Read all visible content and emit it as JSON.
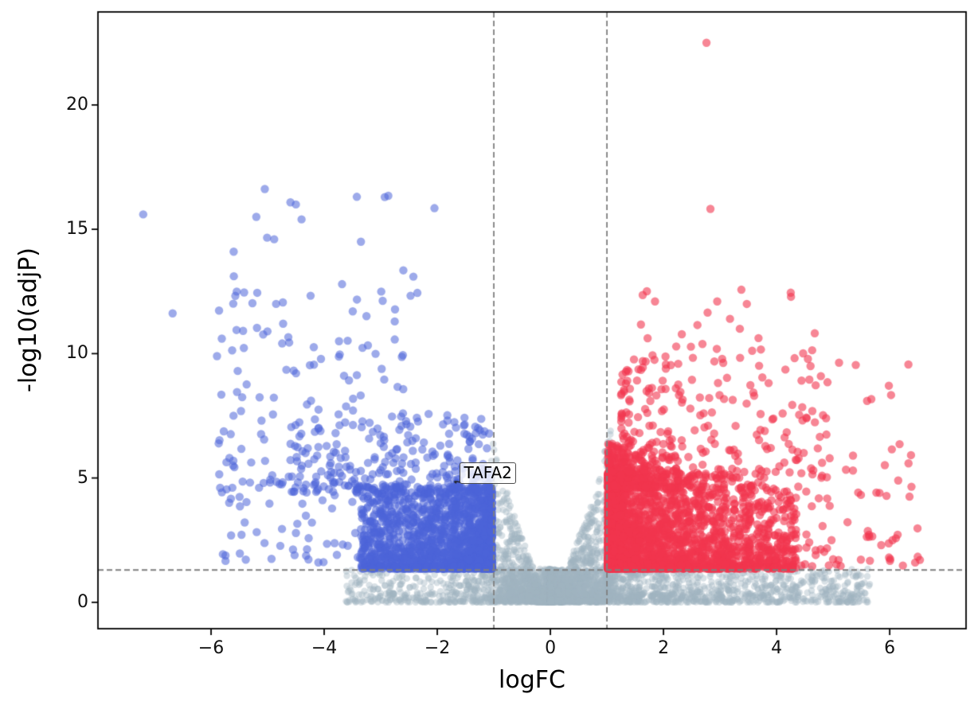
{
  "figure": {
    "background": "#ffffff"
  },
  "chart_data": {
    "type": "scatter",
    "title": "",
    "xlabel": "logFC",
    "ylabel": "-log10(adjP)",
    "xlim": [
      -8.0,
      7.35
    ],
    "ylim": [
      -1.06,
      23.74
    ],
    "grid": false,
    "legend": false,
    "xticks": {
      "values": [
        -6,
        -4,
        -2,
        0,
        2,
        4,
        6
      ],
      "labels": [
        "−6",
        "−4",
        "−2",
        "0",
        "2",
        "4",
        "6"
      ]
    },
    "yticks": {
      "values": [
        0,
        5,
        10,
        15,
        20
      ],
      "labels": [
        "0",
        "5",
        "10",
        "15",
        "20"
      ]
    },
    "thresholds": {
      "x_lines": [
        -1,
        1
      ],
      "y_line": 1.3,
      "line_color": "#7f7f7f",
      "dash": [
        7,
        4
      ]
    },
    "groups": {
      "nonsignificant": {
        "color": "#9fb4c0",
        "alpha": 0.4,
        "radius": 4.2
      },
      "down": {
        "color": "#4d64d8",
        "alpha": 0.55,
        "radius": 5.2
      },
      "up": {
        "color": "#f2354f",
        "alpha": 0.6,
        "radius": 5.2
      }
    },
    "seed": 42,
    "clusters": [
      {
        "group": "nonsignificant",
        "n": 850,
        "x": [
          0,
          -3.65,
          2.4
        ],
        "y": [
          0,
          1.35,
          2.0
        ]
      },
      {
        "group": "nonsignificant",
        "n": 1450,
        "x": [
          0,
          5.65,
          2.8
        ],
        "y": [
          0,
          1.35,
          2.0
        ]
      },
      {
        "group": "nonsignificant",
        "n": 260,
        "x": [
          1.0,
          5.5,
          2.2
        ],
        "y": [
          0.2,
          1.4,
          1.6
        ]
      },
      {
        "group": "nonsignificant",
        "n": 520,
        "x": [
          -0.12,
          -1.07,
          1.1
        ],
        "y": "v"
      },
      {
        "group": "nonsignificant",
        "n": 620,
        "x": [
          0.12,
          1.07,
          1.1
        ],
        "y": "v"
      },
      {
        "group": "down",
        "n": 1650,
        "x": [
          -1.03,
          -3.35,
          1.7
        ],
        "y": [
          1.35,
          4.65,
          1.85
        ]
      },
      {
        "group": "down",
        "n": 230,
        "x": [
          -1.05,
          -4.6,
          1.5
        ],
        "y": [
          4.4,
          7.6,
          1.9
        ]
      },
      {
        "group": "down",
        "n": 140,
        "x": [
          -2.6,
          -5.9,
          1.25
        ],
        "y": [
          4.6,
          12.5,
          1.8
        ]
      },
      {
        "group": "down",
        "n": 18,
        "x": [
          -2.3,
          -5.7,
          1.0
        ],
        "y": [
          12.0,
          16.7,
          1.4
        ]
      },
      {
        "group": "down",
        "n": 55,
        "x": [
          -3.2,
          -5.85,
          1.3
        ],
        "y": [
          1.6,
          5.0,
          1.5
        ]
      },
      {
        "group": "up",
        "n": 2400,
        "x": [
          1.02,
          4.35,
          2.4
        ],
        "y": [
          1.35,
          5.2,
          1.95
        ],
        "ytop": [
          7.6,
          -0.75
        ]
      },
      {
        "group": "up",
        "n": 280,
        "x": [
          1.02,
          2.3,
          2.0
        ],
        "y": [
          4.6,
          6.45,
          1.7
        ]
      },
      {
        "group": "up",
        "n": 240,
        "x": [
          1.25,
          4.9,
          1.9
        ],
        "y": [
          5.0,
          10.0,
          1.9
        ]
      },
      {
        "group": "up",
        "n": 26,
        "x": [
          1.6,
          4.7,
          1.4
        ],
        "y": [
          9.6,
          12.6,
          1.5
        ]
      },
      {
        "group": "up",
        "n": 60,
        "x": [
          4.3,
          6.55,
          1.5
        ],
        "y": [
          1.45,
          6.2,
          1.7
        ]
      },
      {
        "group": "up",
        "n": 10,
        "x": [
          4.5,
          6.4,
          1.2
        ],
        "y": [
          6.0,
          9.7,
          1.4
        ]
      }
    ],
    "outliers": {
      "down": [
        [
          -7.2,
          15.6
        ],
        [
          -6.68,
          11.62
        ],
        [
          -5.6,
          14.1
        ],
        [
          -5.05,
          16.62
        ],
        [
          -5.2,
          15.5
        ],
        [
          -4.5,
          16.0
        ],
        [
          -4.4,
          15.4
        ],
        [
          -3.35,
          14.5
        ],
        [
          -2.05,
          15.85
        ],
        [
          -2.6,
          13.35
        ],
        [
          -4.85,
          12.0
        ],
        [
          -5.55,
          10.95
        ]
      ],
      "up": [
        [
          2.76,
          22.5
        ],
        [
          2.83,
          15.82
        ],
        [
          4.25,
          12.45
        ],
        [
          2.95,
          12.1
        ],
        [
          2.78,
          11.65
        ],
        [
          1.85,
          12.1
        ],
        [
          2.6,
          11.15
        ],
        [
          3.35,
          11.0
        ],
        [
          5.6,
          8.1
        ],
        [
          6.35,
          4.25
        ],
        [
          5.35,
          5.3
        ],
        [
          4.9,
          8.85
        ],
        [
          4.6,
          9.5
        ],
        [
          6.05,
          2.5
        ],
        [
          5.85,
          2.3
        ],
        [
          6.45,
          1.6
        ]
      ]
    },
    "annotation": {
      "label": "TAFA2",
      "point": [
        -1.66,
        4.82
      ],
      "label_pos": [
        -1.6,
        5.62
      ]
    }
  }
}
